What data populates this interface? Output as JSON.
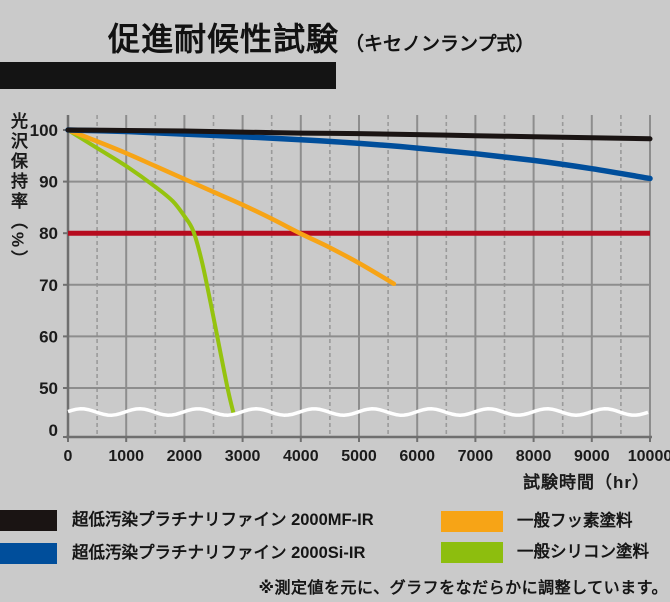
{
  "header": {
    "title": "促進耐候性試験",
    "subtitle": "（キセノンランプ式）"
  },
  "chart": {
    "y_axis_label": "光沢保持率（%）",
    "x_axis_label": "試験時間（hr）",
    "y_ticks": [
      100,
      90,
      80,
      70,
      60,
      50,
      0
    ],
    "x_ticks": [
      0,
      1000,
      2000,
      3000,
      4000,
      5000,
      6000,
      7000,
      8000,
      9000,
      10000
    ],
    "colors": {
      "grid": "#8d8d8d",
      "grid_dashed": "#9a9a9a",
      "axis": "#6f6f6f",
      "tick_text": "#1b1b1b",
      "reference_red": "#b60b1e",
      "axis_break_wave": "#ffffff"
    }
  },
  "chart_data": {
    "type": "line",
    "title": "促進耐候性試験（キセノンランプ式）",
    "xlabel": "試験時間（hr）",
    "ylabel": "光沢保持率（%）",
    "xlim": [
      0,
      10000
    ],
    "ylim": [
      50,
      100
    ],
    "axis_break": "y axis broken between 0 and 50 (white wavy line at bottom of plot)",
    "grid": "solid gray lines every 1000hr and every 10%, dashed gray lines every 500hr",
    "legend_position": "below chart",
    "reference_line": {
      "y": 80,
      "color": "#b60b1e"
    },
    "series": [
      {
        "name": "超低汚染プラチナリファイン 2000MF-IR",
        "color": "#1a1413",
        "x": [
          0,
          1000,
          2000,
          3000,
          4000,
          5000,
          6000,
          7000,
          8000,
          9000,
          10000
        ],
        "y": [
          100,
          99.9,
          99.8,
          99.6,
          99.4,
          99.3,
          99.1,
          98.9,
          98.7,
          98.5,
          98.3
        ]
      },
      {
        "name": "超低汚染プラチナリファイン 2000Si-IR",
        "color": "#004e9b",
        "x": [
          0,
          1000,
          2000,
          3000,
          4000,
          5000,
          6000,
          7000,
          8000,
          9000,
          10000
        ],
        "y": [
          100,
          99.7,
          99.2,
          98.7,
          98.1,
          97.4,
          96.5,
          95.4,
          94.1,
          92.5,
          90.6
        ]
      },
      {
        "name": "一般フッ素塗料",
        "color": "#f7a416",
        "x": [
          0,
          500,
          1000,
          1500,
          2000,
          2500,
          3000,
          3500,
          4000,
          4500,
          5000,
          5600
        ],
        "y": [
          100,
          97.8,
          95.5,
          93,
          90.5,
          88,
          85.5,
          82.8,
          79.9,
          77.2,
          74.2,
          70.2
        ]
      },
      {
        "name": "一般シリコン塗料",
        "color": "#95c30e",
        "x": [
          0,
          500,
          1000,
          1500,
          1800,
          2000,
          2150,
          2300,
          2450,
          2600,
          2750,
          2840
        ],
        "y": [
          100,
          96.5,
          93,
          89,
          86.2,
          83.3,
          80.5,
          74.5,
          66.5,
          58,
          49.5,
          45.3
        ]
      }
    ]
  },
  "legend": {
    "items": [
      {
        "label": "超低汚染プラチナリファイン 2000MF-IR",
        "color": "#1a1413"
      },
      {
        "label": "超低汚染プラチナリファイン 2000Si-IR",
        "color": "#004e9b"
      },
      {
        "label": "一般フッ素塗料",
        "color": "#f7a416"
      },
      {
        "label": "一般シリコン塗料",
        "color": "#8dbe0e"
      }
    ]
  },
  "footnote": {
    "text": "※測定値を元に、グラフをなだらかに調整しています。"
  }
}
